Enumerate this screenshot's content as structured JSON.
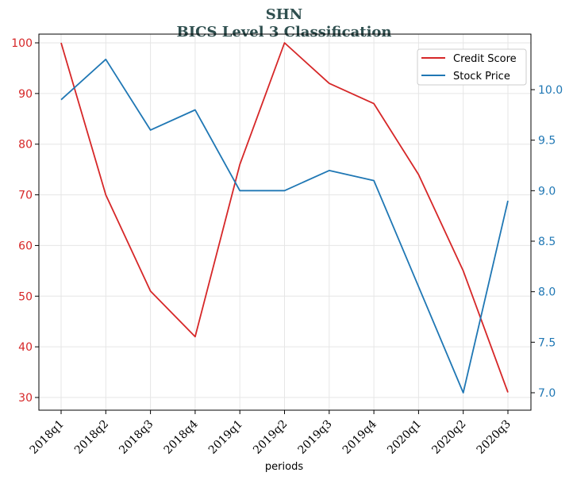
{
  "chart_data": {
    "type": "line",
    "title": "SHN",
    "subtitle": "BICS Level 3 Classification",
    "xlabel": "periods",
    "categories": [
      "2018q1",
      "2018q2",
      "2018q3",
      "2018q4",
      "2019q1",
      "2019q2",
      "2019q3",
      "2019q4",
      "2020q1",
      "2020q2",
      "2020q3"
    ],
    "series": [
      {
        "name": "Credit Score",
        "axis": "left",
        "color": "#d62728",
        "values": [
          100,
          70,
          51,
          42,
          76,
          100,
          92,
          88,
          74,
          55,
          31
        ]
      },
      {
        "name": "Stock Price",
        "axis": "right",
        "color": "#1f77b4",
        "values": [
          9.9,
          10.3,
          9.6,
          9.8,
          9.0,
          9.0,
          9.2,
          9.1,
          8.05,
          7.0,
          8.9
        ]
      }
    ],
    "y_left": {
      "ylim": [
        27.6,
        100
      ],
      "ticks": [
        30,
        40,
        50,
        60,
        70,
        80,
        90,
        100
      ],
      "color": "#d62728"
    },
    "y_right": {
      "ylim": [
        6.9,
        10.44
      ],
      "ticks": [
        7.0,
        7.5,
        8.0,
        8.5,
        9.0,
        9.5,
        10.0
      ],
      "color": "#1f77b4"
    },
    "grid": true,
    "legend": "top-right"
  }
}
